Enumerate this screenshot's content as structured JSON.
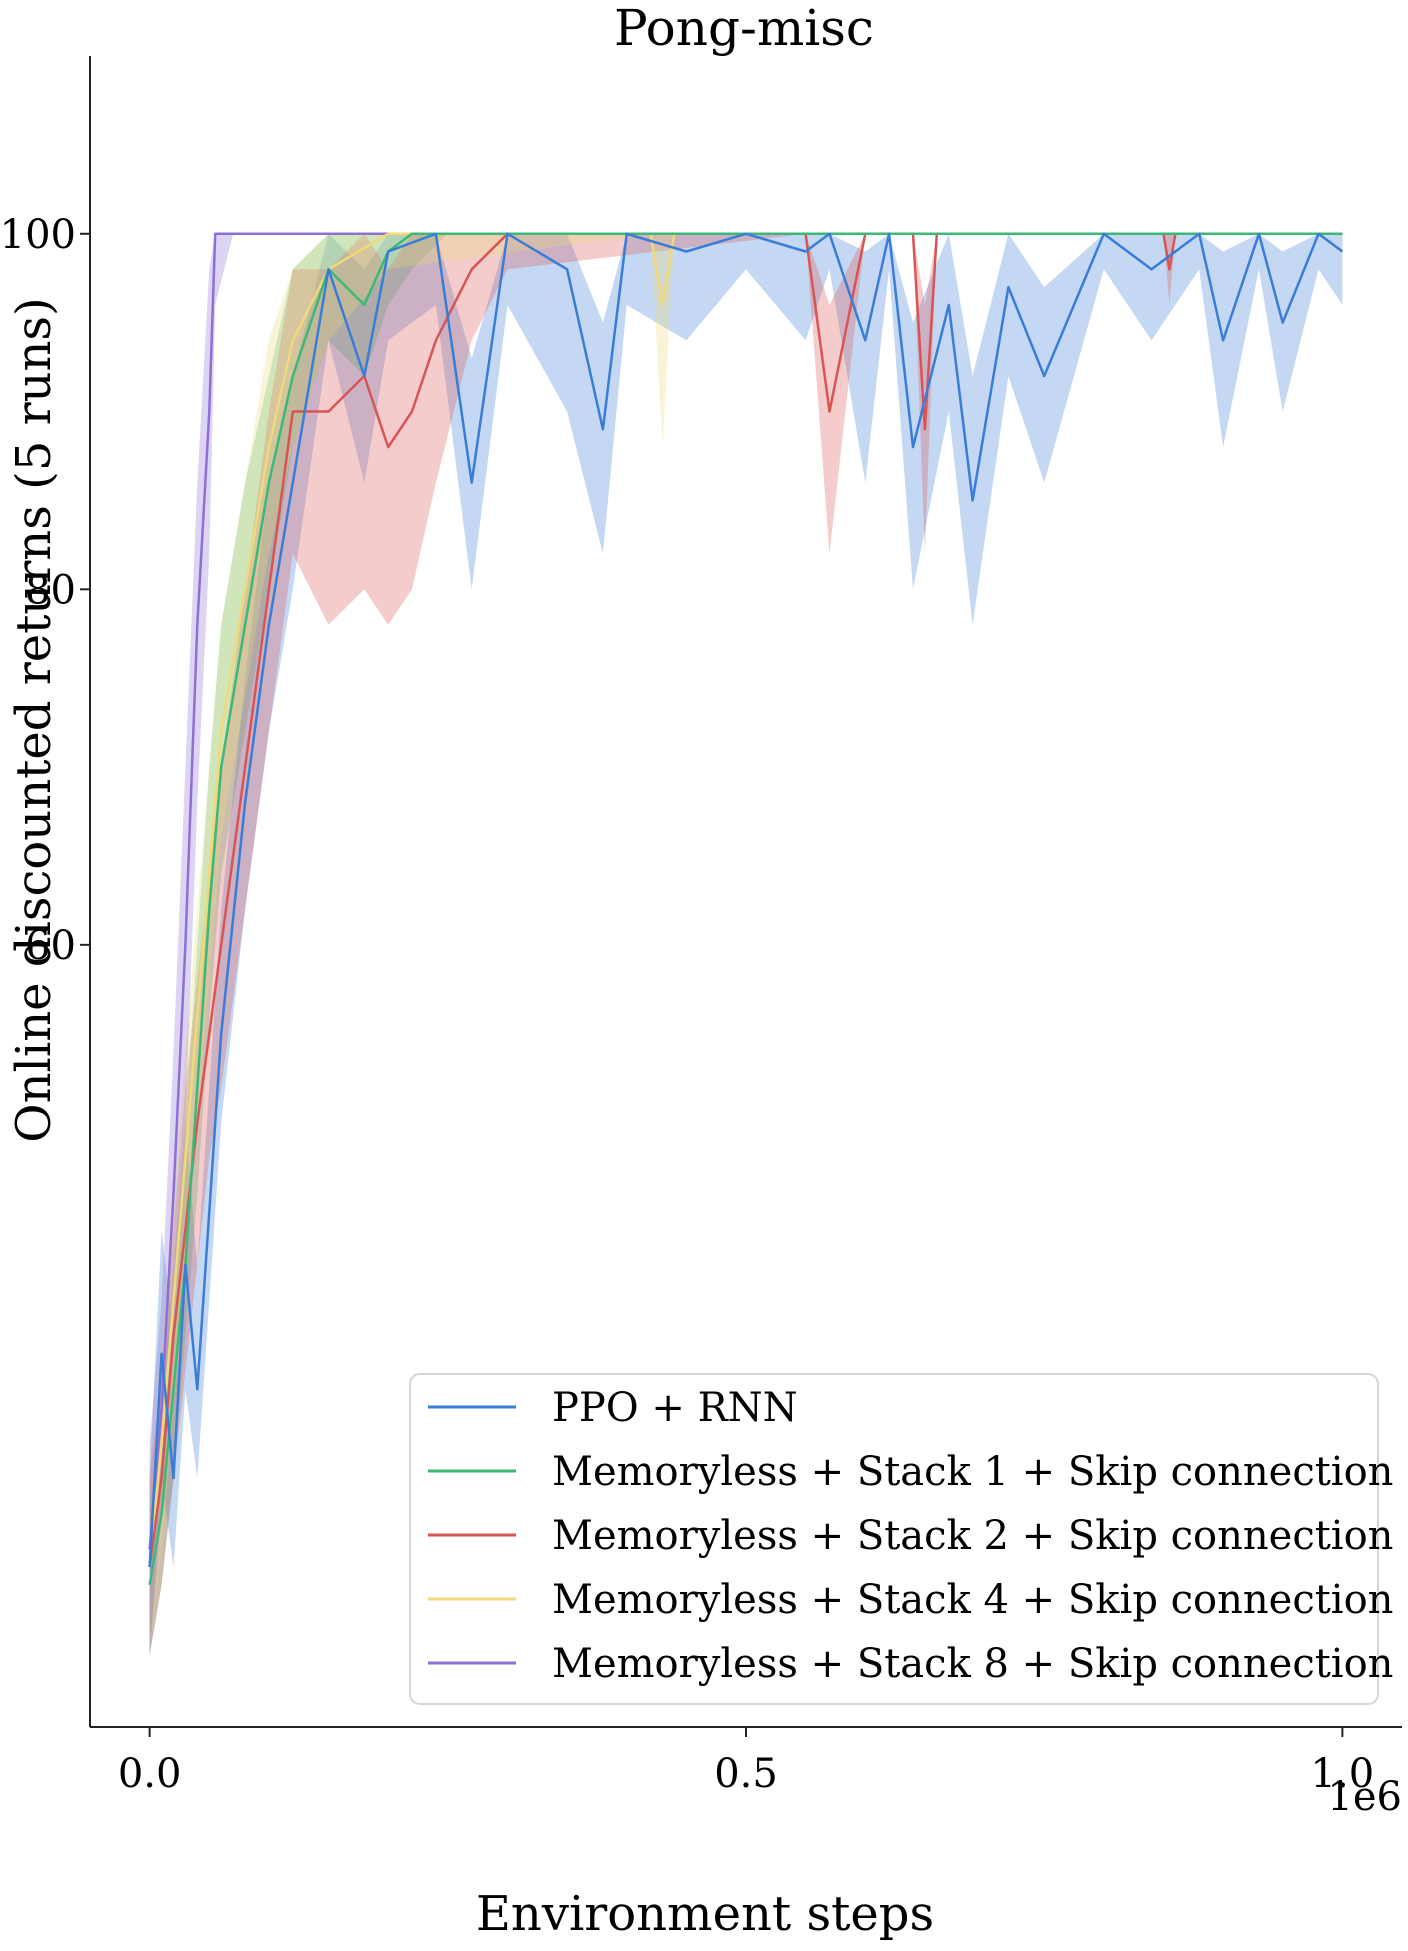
{
  "chart_data": {
    "type": "line",
    "title": "Pong-misc",
    "xlabel": "Environment steps",
    "ylabel": "Online discounted returns (5 runs)",
    "x_offset_label": "1e6",
    "xlim": [
      -0.05,
      1.05
    ],
    "ylim": [
      16,
      110
    ],
    "x_ticks": [
      0.0,
      0.5,
      1.0
    ],
    "x_tick_labels": [
      "0.0",
      "0.5",
      "1.0"
    ],
    "y_ticks": [
      60,
      80,
      100
    ],
    "y_tick_labels": [
      "60",
      "80",
      "100"
    ],
    "grid": false,
    "legend_position": "bottom-right",
    "series": [
      {
        "name": "PPO + RNN",
        "color": "#3a7dd6",
        "x": [
          0.0,
          0.01,
          0.02,
          0.03,
          0.04,
          0.05,
          0.06,
          0.08,
          0.1,
          0.12,
          0.15,
          0.18,
          0.2,
          0.24,
          0.27,
          0.3,
          0.35,
          0.38,
          0.4,
          0.45,
          0.5,
          0.55,
          0.57,
          0.6,
          0.62,
          0.64,
          0.67,
          0.69,
          0.72,
          0.75,
          0.8,
          0.84,
          0.88,
          0.9,
          0.93,
          0.95,
          0.98,
          1.0
        ],
        "values": [
          25,
          37,
          30,
          42,
          35,
          45,
          55,
          68,
          78,
          86,
          98,
          92,
          99,
          100,
          86,
          100,
          98,
          89,
          100,
          99,
          100,
          99,
          100,
          94,
          100,
          88,
          96,
          85,
          97,
          92,
          100,
          98,
          100,
          94,
          100,
          95,
          100,
          99
        ],
        "band_low": [
          20,
          30,
          25,
          35,
          30,
          40,
          50,
          62,
          72,
          80,
          94,
          86,
          94,
          96,
          80,
          96,
          90,
          82,
          96,
          94,
          98,
          94,
          98,
          86,
          98,
          80,
          90,
          78,
          92,
          86,
          98,
          94,
          98,
          88,
          98,
          90,
          98,
          96
        ],
        "band_high": [
          30,
          44,
          38,
          50,
          42,
          52,
          62,
          75,
          86,
          92,
          100,
          98,
          100,
          100,
          93,
          100,
          100,
          95,
          100,
          100,
          100,
          100,
          100,
          99,
          100,
          95,
          100,
          92,
          100,
          97,
          100,
          100,
          100,
          99,
          100,
          99,
          100,
          100
        ]
      },
      {
        "name": "Memoryless + Stack 1 + Skip connection",
        "color": "#3cb877",
        "x": [
          0.0,
          0.01,
          0.02,
          0.03,
          0.04,
          0.05,
          0.06,
          0.08,
          0.1,
          0.12,
          0.15,
          0.18,
          0.2,
          0.22,
          0.25,
          0.3,
          1.0
        ],
        "values": [
          24,
          28,
          35,
          42,
          52,
          62,
          70,
          78,
          86,
          92,
          98,
          96,
          99,
          100,
          100,
          100,
          100
        ],
        "band_low": [
          20,
          24,
          30,
          38,
          46,
          56,
          64,
          72,
          80,
          88,
          94,
          92,
          96,
          98,
          100,
          100,
          100
        ],
        "band_high": [
          28,
          34,
          42,
          50,
          60,
          70,
          78,
          86,
          92,
          98,
          100,
          100,
          100,
          100,
          100,
          100,
          100
        ]
      },
      {
        "name": "Memoryless + Stack 2 + Skip connection",
        "color": "#d95555",
        "x": [
          0.0,
          0.01,
          0.02,
          0.03,
          0.04,
          0.05,
          0.06,
          0.08,
          0.1,
          0.12,
          0.15,
          0.18,
          0.2,
          0.22,
          0.24,
          0.27,
          0.3,
          0.55,
          0.57,
          0.6,
          0.64,
          0.65,
          0.66,
          0.7,
          0.85,
          0.855,
          0.86,
          1.0
        ],
        "values": [
          25,
          30,
          38,
          44,
          50,
          55,
          60,
          70,
          80,
          90,
          90,
          92,
          88,
          90,
          94,
          98,
          100,
          100,
          90,
          100,
          100,
          89,
          100,
          100,
          100,
          98,
          100,
          100
        ],
        "band_low": [
          20,
          24,
          30,
          36,
          42,
          48,
          52,
          62,
          72,
          82,
          78,
          80,
          78,
          80,
          86,
          94,
          98,
          100,
          82,
          100,
          100,
          82,
          100,
          100,
          100,
          96,
          100,
          100
        ],
        "band_high": [
          30,
          36,
          44,
          52,
          58,
          64,
          70,
          80,
          90,
          98,
          98,
          100,
          98,
          100,
          100,
          100,
          100,
          100,
          96,
          100,
          100,
          96,
          100,
          100,
          100,
          100,
          100,
          100
        ]
      },
      {
        "name": "Memoryless + Stack 4 + Skip connection",
        "color": "#f0d97a",
        "x": [
          0.0,
          0.01,
          0.02,
          0.03,
          0.04,
          0.05,
          0.06,
          0.08,
          0.1,
          0.12,
          0.15,
          0.2,
          0.42,
          0.43,
          0.44,
          1.0
        ],
        "values": [
          25,
          32,
          40,
          48,
          56,
          64,
          72,
          80,
          88,
          94,
          98,
          100,
          100,
          96,
          100,
          100
        ],
        "band_low": [
          20,
          26,
          34,
          42,
          50,
          58,
          66,
          74,
          82,
          88,
          94,
          98,
          100,
          88,
          100,
          100
        ],
        "band_high": [
          30,
          38,
          46,
          54,
          62,
          70,
          78,
          86,
          94,
          98,
          100,
          100,
          100,
          100,
          100,
          100
        ]
      },
      {
        "name": "Memoryless + Stack 8 + Skip connection",
        "color": "#8f6fd6",
        "x": [
          0.0,
          0.01,
          0.02,
          0.03,
          0.04,
          0.05,
          0.055,
          0.07,
          0.1,
          1.0
        ],
        "values": [
          26,
          34,
          46,
          60,
          78,
          90,
          100,
          100,
          100,
          100
        ],
        "band_low": [
          20,
          28,
          38,
          50,
          68,
          82,
          96,
          100,
          100,
          100
        ],
        "band_high": [
          32,
          40,
          54,
          70,
          86,
          98,
          100,
          100,
          100,
          100
        ]
      }
    ]
  }
}
